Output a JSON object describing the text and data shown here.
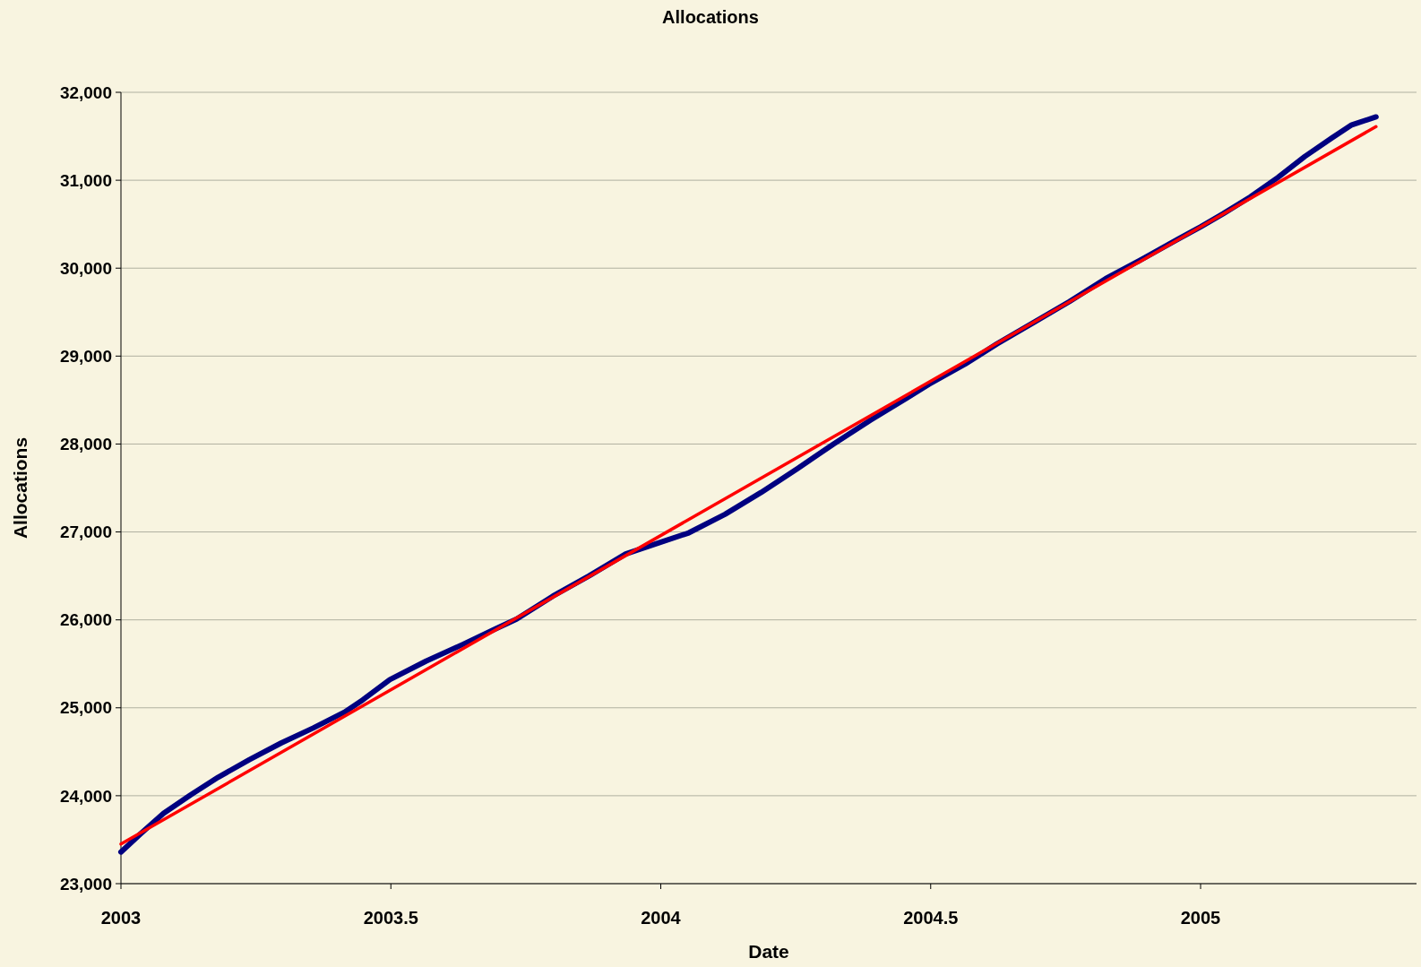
{
  "chart_data": {
    "type": "line",
    "title": "Allocations",
    "xlabel": "Date",
    "ylabel": "Allocations",
    "xlim": [
      2003,
      2005.4
    ],
    "xticks": [
      2003,
      2003.5,
      2004,
      2004.5,
      2005
    ],
    "ylim": [
      23000,
      32000
    ],
    "yticks": [
      {
        "value": 23000,
        "label": "23,000"
      },
      {
        "value": 24000,
        "label": "24,000"
      },
      {
        "value": 25000,
        "label": "25,000"
      },
      {
        "value": 26000,
        "label": "26,000"
      },
      {
        "value": 27000,
        "label": "27,000"
      },
      {
        "value": 28000,
        "label": "28,000"
      },
      {
        "value": 29000,
        "label": "29,000"
      },
      {
        "value": 30000,
        "label": "30,000"
      },
      {
        "value": 31000,
        "label": "31,000"
      },
      {
        "value": 32000,
        "label": "32,000"
      }
    ],
    "grid": "y",
    "marker": "none",
    "line_style": "solid",
    "series": [
      {
        "color": "#000080",
        "x": [
          2003,
          2003.037,
          2003.079,
          2003.129,
          2003.18,
          2003.238,
          2003.297,
          2003.356,
          2003.414,
          2003.448,
          2003.498,
          2003.565,
          2003.633,
          2003.691,
          2003.733,
          2003.8,
          2003.867,
          2003.935,
          2003.998,
          2004.052,
          2004.119,
          2004.186,
          2004.253,
          2004.32,
          2004.388,
          2004.455,
          2004.497,
          2004.564,
          2004.623,
          2004.69,
          2004.757,
          2004.824,
          2004.891,
          2004.958,
          2005,
          2005.042,
          2005.092,
          2005.143,
          2005.193,
          2005.243,
          2005.28,
          2005.325
        ],
        "values": [
          23360,
          23570,
          23800,
          24010,
          24210,
          24410,
          24600,
          24770,
          24950,
          25090,
          25320,
          25530,
          25720,
          25890,
          26010,
          26270,
          26500,
          26750,
          26880,
          26990,
          27200,
          27450,
          27720,
          28000,
          28270,
          28520,
          28680,
          28910,
          29140,
          29380,
          29620,
          29880,
          30100,
          30330,
          30470,
          30620,
          30810,
          31030,
          31270,
          31480,
          31630,
          31720
        ]
      },
      {
        "type": "line",
        "color": "#ff0000",
        "x": [
          2003,
          2005.325
        ],
        "values": [
          23450,
          31610
        ]
      }
    ]
  }
}
